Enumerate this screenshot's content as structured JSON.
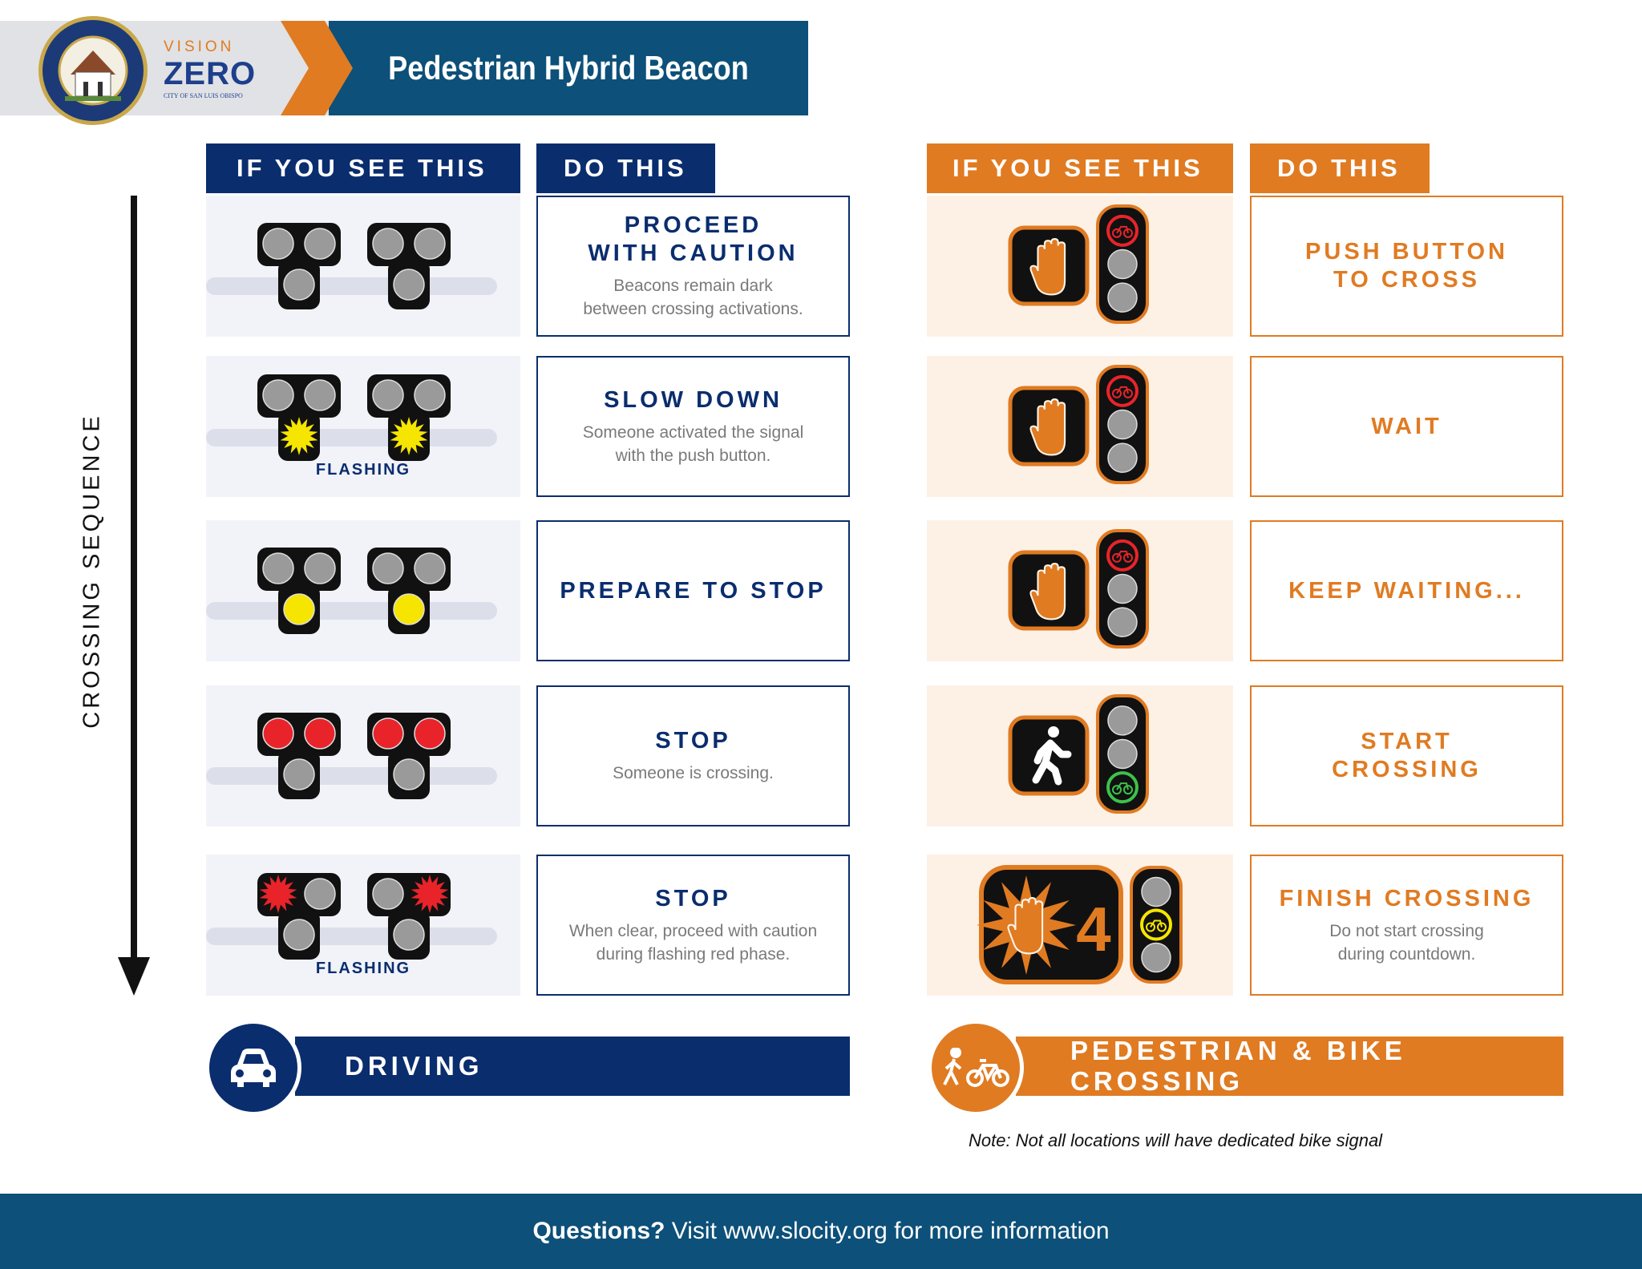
{
  "header": {
    "title": "Pedestrian Hybrid Beacon",
    "seal_text": "CITY OF SAN LUIS OBISPO",
    "logo": {
      "line1": "VISION",
      "line2": "ZERO",
      "line3": "CITY OF SAN LUIS OBISPO"
    }
  },
  "colors": {
    "navy": "#0a2d6e",
    "orange": "#e07b22",
    "header_blue": "#0d5079"
  },
  "sequence_label": "CROSSING SEQUENCE",
  "driving": {
    "see_header": "IF YOU SEE THIS",
    "do_header": "DO THIS",
    "footer_label": "DRIVING",
    "icon": "car-icon",
    "rows": [
      {
        "title": "PROCEED\nWITH CAUTION",
        "desc": "Beacons remain dark\nbetween crossing activations.",
        "flash_label": "",
        "beacons": [
          [
            "off",
            "off",
            "off"
          ],
          [
            "off",
            "off",
            "off"
          ]
        ]
      },
      {
        "title": "SLOW DOWN",
        "desc": "Someone activated the signal\nwith the push button.",
        "flash_label": "FLASHING",
        "beacons": [
          [
            "off",
            "off",
            "yellow-flash"
          ],
          [
            "off",
            "off",
            "yellow-flash"
          ]
        ]
      },
      {
        "title": "PREPARE TO STOP",
        "desc": "",
        "flash_label": "",
        "beacons": [
          [
            "off",
            "off",
            "yellow"
          ],
          [
            "off",
            "off",
            "yellow"
          ]
        ]
      },
      {
        "title": "STOP",
        "desc": "Someone is crossing.",
        "flash_label": "",
        "beacons": [
          [
            "red",
            "red",
            "off"
          ],
          [
            "red",
            "red",
            "off"
          ]
        ]
      },
      {
        "title": "STOP",
        "desc": "When clear, proceed with caution\nduring flashing red phase.",
        "flash_label": "FLASHING",
        "beacons": [
          [
            "red-flash",
            "off",
            "off"
          ],
          [
            "off",
            "red-flash",
            "off"
          ]
        ]
      }
    ]
  },
  "pedestrian": {
    "see_header": "IF YOU SEE THIS",
    "do_header": "DO THIS",
    "footer_label": "PEDESTRIAN & BIKE CROSSING",
    "icon": "pedestrian-bike-icon",
    "rows": [
      {
        "title": "PUSH BUTTON\nTO CROSS",
        "desc": "",
        "ped": "hand",
        "bike": "red"
      },
      {
        "title": "WAIT",
        "desc": "",
        "ped": "hand",
        "bike": "red"
      },
      {
        "title": "KEEP WAITING...",
        "desc": "",
        "ped": "hand",
        "bike": "red"
      },
      {
        "title": "START\nCROSSING",
        "desc": "",
        "ped": "walk",
        "bike": "green"
      },
      {
        "title": "FINISH CROSSING",
        "desc": "Do not start crossing\nduring countdown.",
        "ped": "countdown",
        "countdown": "4",
        "bike": "yellow"
      }
    ]
  },
  "note": "Note: Not all locations will have dedicated bike signal",
  "footer": {
    "bold": "Questions?",
    "text": " Visit www.slocity.org for more information"
  }
}
